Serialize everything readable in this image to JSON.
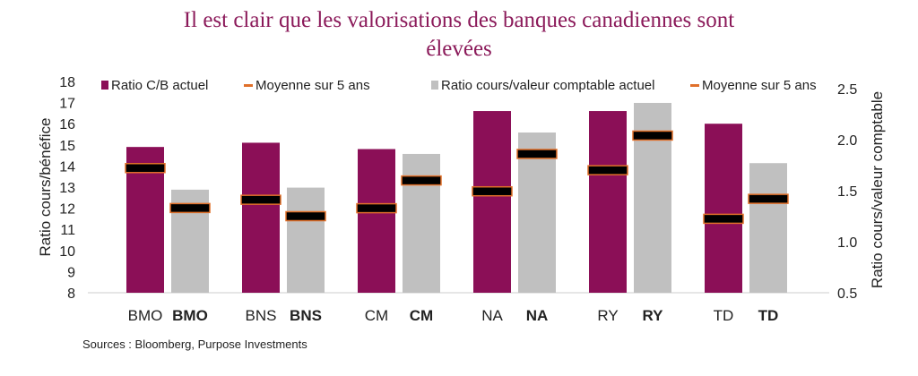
{
  "chart_data": {
    "type": "bar",
    "title": [
      "Il est clair que les valorisations des banques canadiennes sont",
      "élevées"
    ],
    "categories": [
      "BMO",
      "BNS",
      "CM",
      "NA",
      "RY",
      "TD"
    ],
    "ylabel": "Ratio cours/bénéfice",
    "y2label": "Ratio cours/valeur comptable",
    "ylim": [
      8,
      18
    ],
    "y2lim": [
      0.5,
      2.5
    ],
    "yticks": [
      8,
      9,
      10,
      11,
      12,
      13,
      14,
      15,
      16,
      17,
      18
    ],
    "y2ticks": [
      "0.5",
      "1.0",
      "1.5",
      "2.0",
      "2.5"
    ],
    "grid": false,
    "legend_placement": "top",
    "series": [
      {
        "name": "Ratio C/B actuel",
        "axis": "left",
        "kind": "bar",
        "color": "#8b0f57",
        "values": [
          14.9,
          15.1,
          14.8,
          16.6,
          16.6,
          16.0
        ]
      },
      {
        "name": "Moyenne sur 5 ans",
        "axis": "left",
        "kind": "marker",
        "color": "#e0702a",
        "values": [
          13.9,
          12.4,
          12.0,
          12.8,
          13.8,
          11.5
        ]
      },
      {
        "name": "Ratio cours/valeur comptable actuel",
        "axis": "right",
        "kind": "bar",
        "color": "#c0c0c0",
        "values": [
          1.51,
          1.53,
          1.86,
          2.07,
          2.36,
          1.77
        ]
      },
      {
        "name": "Moyenne sur 5 ans",
        "axis": "right",
        "kind": "marker",
        "color": "#e0702a",
        "values": [
          1.33,
          1.25,
          1.6,
          1.86,
          2.04,
          1.42
        ]
      }
    ]
  },
  "source": "Sources : Bloomberg, Purpose Investments"
}
